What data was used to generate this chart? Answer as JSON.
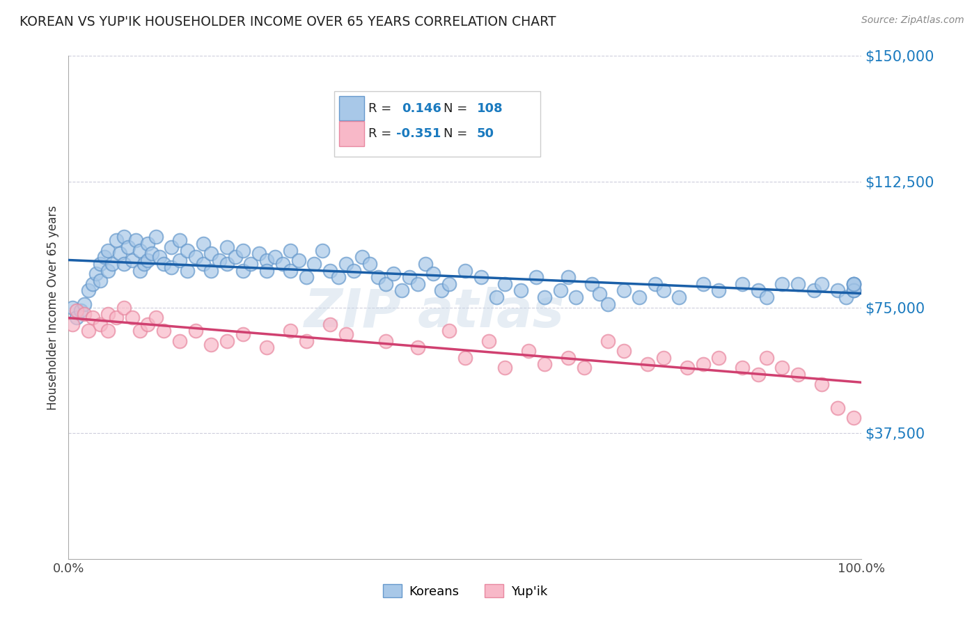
{
  "title": "KOREAN VS YUP'IK HOUSEHOLDER INCOME OVER 65 YEARS CORRELATION CHART",
  "source": "Source: ZipAtlas.com",
  "ylabel": "Householder Income Over 65 years",
  "xlim": [
    0,
    1
  ],
  "ylim": [
    0,
    150000
  ],
  "ytick_labels": [
    "$37,500",
    "$75,000",
    "$112,500",
    "$150,000"
  ],
  "ytick_values": [
    37500,
    75000,
    112500,
    150000
  ],
  "xtick_labels": [
    "0.0%",
    "100.0%"
  ],
  "korean_color_face": "#a8c8e8",
  "korean_color_edge": "#6699cc",
  "korean_line_color": "#1a5fa8",
  "yupik_color_face": "#f8b8c8",
  "yupik_color_edge": "#e888a0",
  "yupik_line_color": "#d04070",
  "korean_R": 0.146,
  "korean_N": 108,
  "yupik_R": -0.351,
  "yupik_N": 50,
  "watermark": "ZIPAtlas",
  "legend_label_korean": "Koreans",
  "legend_label_yupik": "Yup'ik",
  "background_color": "#ffffff",
  "grid_color": "#c8c8d8",
  "ytick_color": "#1a7abf",
  "title_color": "#333333",
  "korean_x": [
    0.005,
    0.01,
    0.015,
    0.02,
    0.025,
    0.03,
    0.035,
    0.04,
    0.04,
    0.045,
    0.05,
    0.05,
    0.055,
    0.06,
    0.065,
    0.07,
    0.07,
    0.075,
    0.08,
    0.085,
    0.09,
    0.09,
    0.095,
    0.1,
    0.1,
    0.105,
    0.11,
    0.115,
    0.12,
    0.13,
    0.13,
    0.14,
    0.14,
    0.15,
    0.15,
    0.16,
    0.17,
    0.17,
    0.18,
    0.18,
    0.19,
    0.2,
    0.2,
    0.21,
    0.22,
    0.22,
    0.23,
    0.24,
    0.25,
    0.25,
    0.26,
    0.27,
    0.28,
    0.28,
    0.29,
    0.3,
    0.31,
    0.32,
    0.33,
    0.34,
    0.35,
    0.36,
    0.37,
    0.38,
    0.39,
    0.4,
    0.41,
    0.42,
    0.43,
    0.44,
    0.45,
    0.46,
    0.47,
    0.48,
    0.5,
    0.52,
    0.54,
    0.55,
    0.57,
    0.59,
    0.6,
    0.62,
    0.63,
    0.64,
    0.66,
    0.67,
    0.68,
    0.7,
    0.72,
    0.74,
    0.75,
    0.77,
    0.8,
    0.82,
    0.85,
    0.87,
    0.88,
    0.9,
    0.92,
    0.94,
    0.95,
    0.97,
    0.98,
    0.99,
    0.99,
    0.99,
    0.99,
    0.99
  ],
  "korean_y": [
    75000,
    72000,
    74000,
    76000,
    80000,
    82000,
    85000,
    88000,
    83000,
    90000,
    86000,
    92000,
    88000,
    95000,
    91000,
    96000,
    88000,
    93000,
    89000,
    95000,
    92000,
    86000,
    88000,
    94000,
    89000,
    91000,
    96000,
    90000,
    88000,
    93000,
    87000,
    95000,
    89000,
    92000,
    86000,
    90000,
    94000,
    88000,
    86000,
    91000,
    89000,
    88000,
    93000,
    90000,
    92000,
    86000,
    88000,
    91000,
    89000,
    86000,
    90000,
    88000,
    92000,
    86000,
    89000,
    84000,
    88000,
    92000,
    86000,
    84000,
    88000,
    86000,
    90000,
    88000,
    84000,
    82000,
    85000,
    80000,
    84000,
    82000,
    88000,
    85000,
    80000,
    82000,
    86000,
    84000,
    78000,
    82000,
    80000,
    84000,
    78000,
    80000,
    84000,
    78000,
    82000,
    79000,
    76000,
    80000,
    78000,
    82000,
    80000,
    78000,
    82000,
    80000,
    82000,
    80000,
    78000,
    82000,
    82000,
    80000,
    82000,
    80000,
    78000,
    82000,
    80000,
    82000,
    80000,
    82000
  ],
  "yupik_x": [
    0.005,
    0.01,
    0.02,
    0.025,
    0.03,
    0.04,
    0.05,
    0.05,
    0.06,
    0.07,
    0.08,
    0.09,
    0.1,
    0.11,
    0.12,
    0.14,
    0.16,
    0.18,
    0.2,
    0.22,
    0.25,
    0.28,
    0.3,
    0.33,
    0.35,
    0.4,
    0.44,
    0.48,
    0.5,
    0.53,
    0.55,
    0.58,
    0.6,
    0.63,
    0.65,
    0.68,
    0.7,
    0.73,
    0.75,
    0.78,
    0.8,
    0.82,
    0.85,
    0.87,
    0.88,
    0.9,
    0.92,
    0.95,
    0.97,
    0.99
  ],
  "yupik_y": [
    70000,
    74000,
    73000,
    68000,
    72000,
    70000,
    73000,
    68000,
    72000,
    75000,
    72000,
    68000,
    70000,
    72000,
    68000,
    65000,
    68000,
    64000,
    65000,
    67000,
    63000,
    68000,
    65000,
    70000,
    67000,
    65000,
    63000,
    68000,
    60000,
    65000,
    57000,
    62000,
    58000,
    60000,
    57000,
    65000,
    62000,
    58000,
    60000,
    57000,
    58000,
    60000,
    57000,
    55000,
    60000,
    57000,
    55000,
    52000,
    45000,
    42000
  ]
}
